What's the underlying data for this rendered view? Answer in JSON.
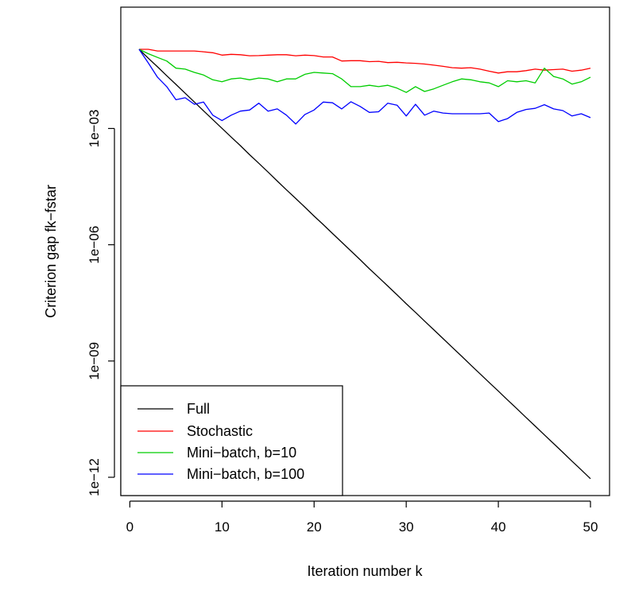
{
  "chart_data": {
    "type": "line",
    "title": "",
    "xlabel": "Iteration number k",
    "ylabel": "Criterion gap fk−fstar",
    "xlim": [
      1,
      50
    ],
    "ylim": [
      1e-12,
      0.5
    ],
    "y_scale": "log",
    "x_ticks": [
      0,
      10,
      20,
      30,
      40,
      50
    ],
    "x_tick_labels": [
      "0",
      "10",
      "20",
      "30",
      "40",
      "50"
    ],
    "y_ticks": [
      0.001,
      1e-06,
      1e-09,
      1e-12
    ],
    "y_tick_labels": [
      "1e−03",
      "1e−06",
      "1e−09",
      "1e−12"
    ],
    "grid": false,
    "legend_position": "bottom-left",
    "x": [
      1,
      2,
      3,
      4,
      5,
      6,
      7,
      8,
      9,
      10,
      11,
      12,
      13,
      14,
      15,
      16,
      17,
      18,
      19,
      20,
      21,
      22,
      23,
      24,
      25,
      26,
      27,
      28,
      29,
      30,
      31,
      32,
      33,
      34,
      35,
      36,
      37,
      38,
      39,
      40,
      41,
      42,
      43,
      44,
      45,
      46,
      47,
      48,
      49,
      50
    ],
    "series": [
      {
        "name": "Full",
        "color": "#000000",
        "values": [
          0.11,
          0.065,
          0.039,
          0.023,
          0.0137,
          0.0081,
          0.0048,
          0.00286,
          0.0017,
          0.00101,
          0.0006,
          0.00036,
          0.00021,
          0.000126,
          7.5e-05,
          4.4e-05,
          2.6e-05,
          1.56e-05,
          9.3e-06,
          5.5e-06,
          3.3e-06,
          1.95e-06,
          1.16e-06,
          6.9e-07,
          4.1e-07,
          2.4e-07,
          1.44e-07,
          8.6e-08,
          5.1e-08,
          3e-08,
          1.8e-08,
          1.07e-08,
          6.4e-09,
          3.8e-09,
          2.25e-09,
          1.34e-09,
          7.9e-10,
          4.7e-10,
          2.8e-10,
          1.67e-10,
          9.9e-11,
          5.9e-11,
          3.5e-11,
          2.1e-11,
          1.24e-11,
          7.4e-12,
          4.4e-12,
          2.6e-12,
          1.55e-12,
          9.2e-13
        ]
      },
      {
        "name": "Stochastic",
        "color": "#ff0000",
        "values": [
          0.11,
          0.11,
          0.1,
          0.1,
          0.1,
          0.1,
          0.1,
          0.095,
          0.09,
          0.078,
          0.082,
          0.08,
          0.075,
          0.076,
          0.078,
          0.08,
          0.08,
          0.075,
          0.078,
          0.076,
          0.07,
          0.07,
          0.055,
          0.056,
          0.056,
          0.053,
          0.054,
          0.05,
          0.051,
          0.049,
          0.048,
          0.046,
          0.043,
          0.04,
          0.037,
          0.036,
          0.037,
          0.034,
          0.03,
          0.027,
          0.029,
          0.029,
          0.031,
          0.034,
          0.032,
          0.033,
          0.034,
          0.03,
          0.032,
          0.036
        ]
      },
      {
        "name": "Mini−batch, b=10",
        "color": "#00cd00",
        "values": [
          0.11,
          0.085,
          0.068,
          0.055,
          0.036,
          0.034,
          0.028,
          0.024,
          0.018,
          0.016,
          0.019,
          0.02,
          0.018,
          0.02,
          0.019,
          0.016,
          0.019,
          0.019,
          0.025,
          0.028,
          0.027,
          0.026,
          0.019,
          0.012,
          0.012,
          0.013,
          0.012,
          0.013,
          0.011,
          0.0085,
          0.012,
          0.009,
          0.0105,
          0.013,
          0.016,
          0.019,
          0.018,
          0.016,
          0.015,
          0.012,
          0.017,
          0.016,
          0.017,
          0.015,
          0.036,
          0.022,
          0.019,
          0.014,
          0.016,
          0.021
        ]
      },
      {
        "name": "Mini−batch, b=100",
        "color": "#0000ff",
        "values": [
          0.11,
          0.049,
          0.021,
          0.012,
          0.0055,
          0.0062,
          0.0042,
          0.0048,
          0.0022,
          0.0016,
          0.0022,
          0.0028,
          0.003,
          0.0045,
          0.0028,
          0.0032,
          0.0022,
          0.0013,
          0.0023,
          0.003,
          0.0048,
          0.0046,
          0.0032,
          0.0049,
          0.0037,
          0.0026,
          0.0027,
          0.0045,
          0.004,
          0.0021,
          0.0042,
          0.0022,
          0.0028,
          0.0025,
          0.0024,
          0.0024,
          0.0024,
          0.0024,
          0.0025,
          0.0015,
          0.0018,
          0.0026,
          0.0031,
          0.0033,
          0.0041,
          0.0032,
          0.0029,
          0.0021,
          0.0024,
          0.0019
        ]
      }
    ]
  }
}
